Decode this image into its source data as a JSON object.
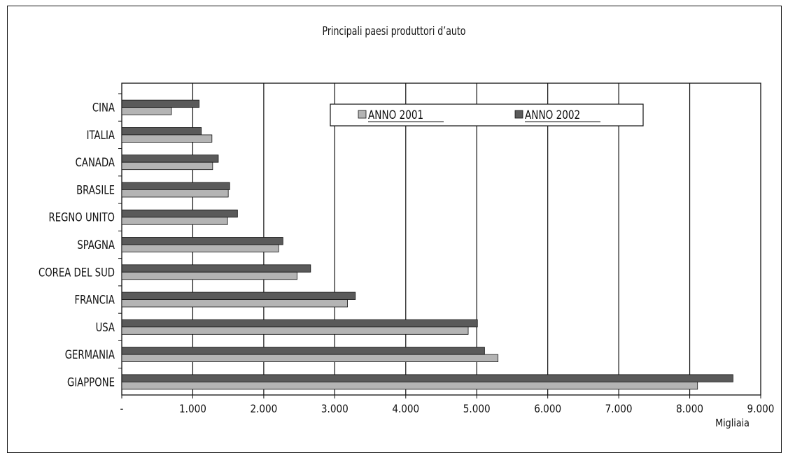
{
  "chart_data": {
    "type": "bar",
    "orientation": "horizontal",
    "title": "Principali paesi produttori d’auto",
    "xlabel": "Migliaia",
    "categories": [
      "CINA",
      "ITALIA",
      "CANADA",
      "BRASILE",
      "REGNO UNITO",
      "SPAGNA",
      "COREA DEL SUD",
      "FRANCIA",
      "USA",
      "GERMANIA",
      "GIAPPONE"
    ],
    "series": [
      {
        "name": "ANNO  2001",
        "color": "#b4b4b4",
        "values": [
          700,
          1270,
          1280,
          1500,
          1490,
          2210,
          2470,
          3180,
          4880,
          5300,
          8110
        ]
      },
      {
        "name": "ANNO  2002",
        "color": "#5a5a5a",
        "values": [
          1090,
          1120,
          1360,
          1520,
          1630,
          2270,
          2660,
          3290,
          5010,
          5110,
          8610
        ]
      }
    ],
    "xlim": [
      0,
      9000
    ],
    "xticks": [
      0,
      1000,
      2000,
      3000,
      4000,
      5000,
      6000,
      7000,
      8000,
      9000
    ],
    "xtick_labels": [
      "-",
      "1.000",
      "2.000",
      "3.000",
      "4.000",
      "5.000",
      "6.000",
      "7.000",
      "8.000",
      "9.000"
    ],
    "grid": "vertical",
    "legend_position": "top-center"
  }
}
